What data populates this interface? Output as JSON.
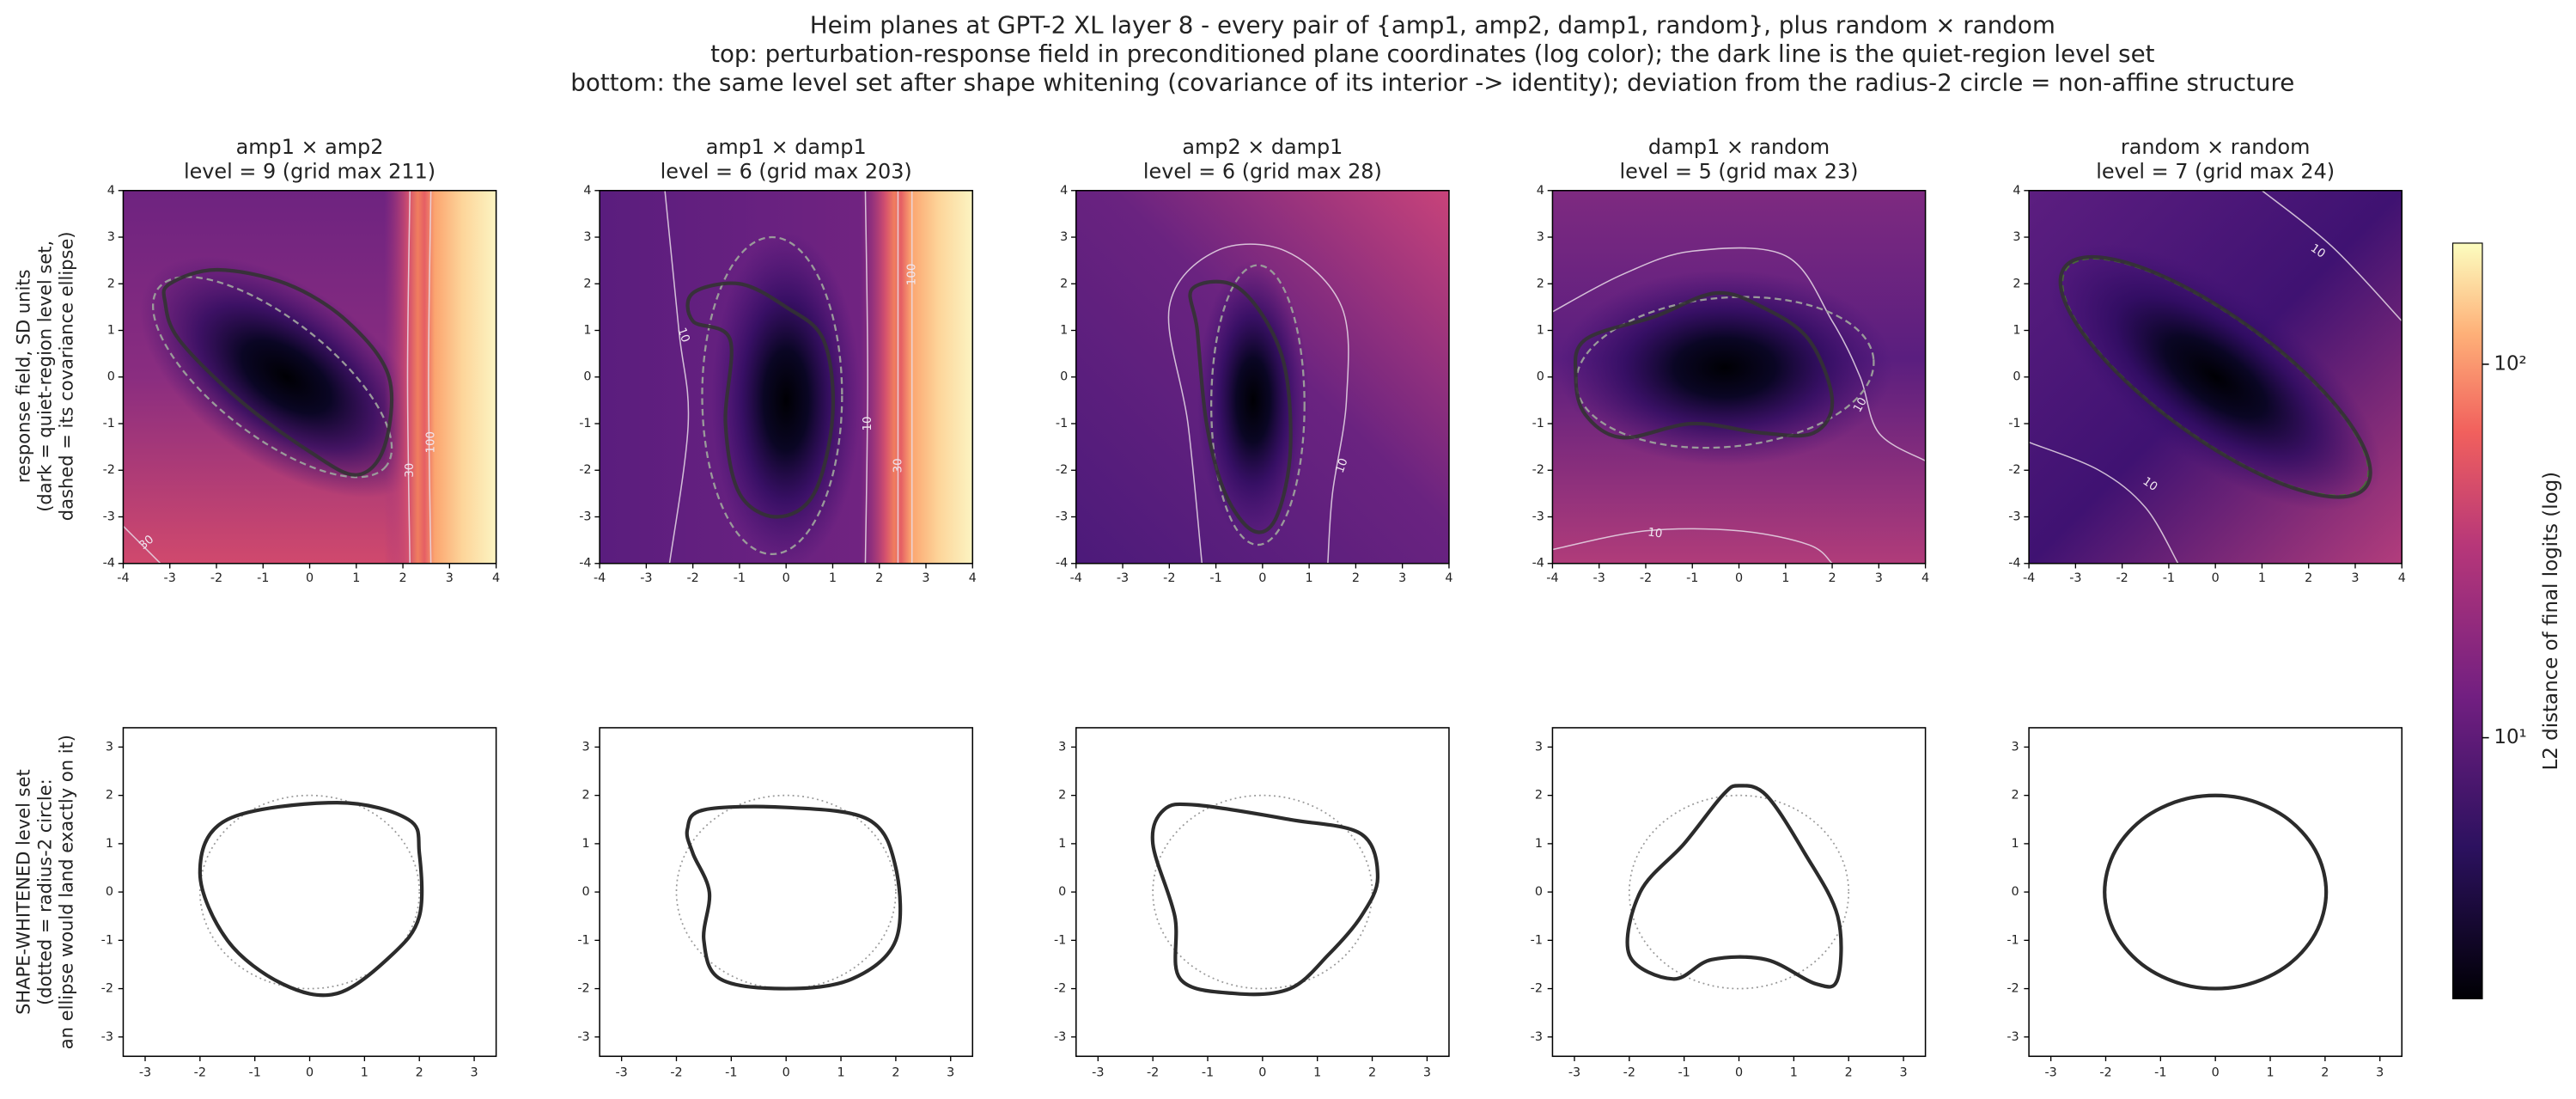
{
  "chart_data": {
    "type": "heim-planes",
    "title": [
      "Heim planes at GPT-2 XL layer 8 - every pair of {amp1, amp2, damp1, random}, plus random × random",
      "top: perturbation-response field in preconditioned plane coordinates (log color); the dark line is the quiet-region level set",
      "bottom: the same level set after shape whitening (covariance of its interior -> identity); deviation from the radius-2 circle = non-affine structure"
    ],
    "top_ylabel": [
      "response field, SD units",
      "(dark = quiet-region level set,",
      "dashed = its covariance ellipse)"
    ],
    "bottom_ylabel": [
      "SHAPE-WHITENED level set",
      "(dotted = radius-2 circle:",
      "an ellipse would land exactly on it)"
    ],
    "panels": [
      {
        "pair": "amp1 × amp2",
        "subtitle": "level = 9   (grid max 211)",
        "contour_labels": [
          30,
          30,
          100
        ]
      },
      {
        "pair": "amp1 × damp1",
        "subtitle": "level = 6   (grid max 203)",
        "contour_labels": [
          10,
          10,
          30,
          100
        ]
      },
      {
        "pair": "amp2 × damp1",
        "subtitle": "level = 6   (grid max 28)",
        "contour_labels": [
          10
        ]
      },
      {
        "pair": "damp1 × random",
        "subtitle": "level = 5   (grid max 23)",
        "contour_labels": [
          10,
          10
        ]
      },
      {
        "pair": "random × random",
        "subtitle": "level = 7   (grid max 24)",
        "contour_labels": [
          10,
          10
        ]
      }
    ],
    "top_axes": {
      "xlim": [
        -4,
        4
      ],
      "ylim": [
        -4,
        4
      ],
      "xticks": [
        -4,
        -3,
        -2,
        -1,
        0,
        1,
        2,
        3,
        4
      ],
      "yticks": [
        -4,
        -3,
        -2,
        -1,
        0,
        1,
        2,
        3,
        4
      ]
    },
    "bottom_axes": {
      "xlim": [
        -3.4,
        3.4
      ],
      "ylim": [
        -3.4,
        3.4
      ],
      "xticks": [
        -3,
        -2,
        -1,
        0,
        1,
        2,
        3
      ],
      "yticks": [
        -3,
        -2,
        -1,
        0,
        1,
        2,
        3
      ]
    },
    "colorbar": {
      "label": "L2 distance of final logits (log)",
      "lim": [
        2,
        211
      ],
      "log": true,
      "ticks": [
        {
          "value": 10,
          "label": "10¹"
        },
        {
          "value": 100,
          "label": "10²"
        }
      ]
    }
  }
}
